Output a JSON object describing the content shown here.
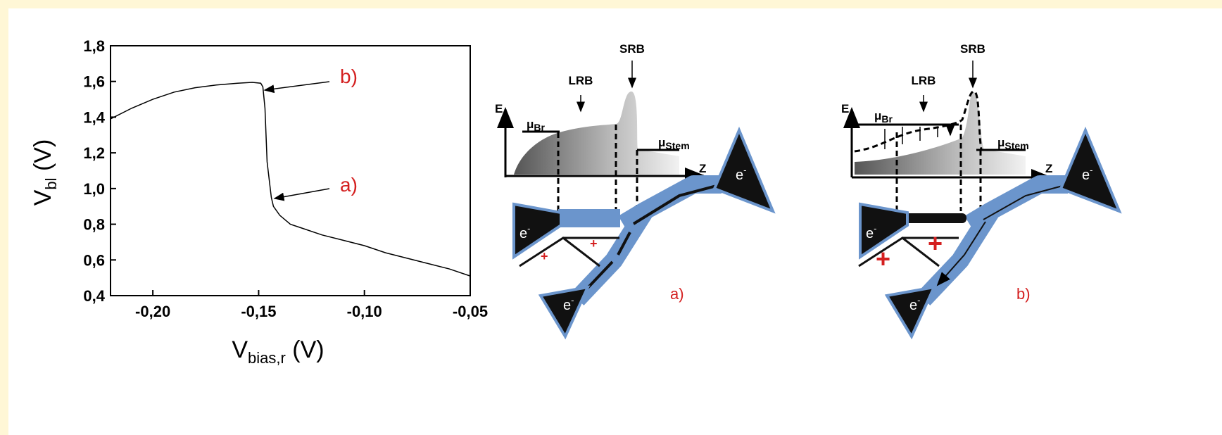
{
  "chart_data": {
    "type": "line",
    "ylabel": [
      "V",
      "bl",
      " (V)"
    ],
    "xlabel": [
      "V",
      "bias,r",
      " (V)"
    ],
    "x": [
      -0.22,
      -0.21,
      -0.2,
      -0.19,
      -0.18,
      -0.17,
      -0.16,
      -0.153,
      -0.149,
      -0.148,
      -0.147,
      -0.1465,
      -0.146,
      -0.145,
      -0.144,
      -0.143,
      -0.14,
      -0.135,
      -0.13,
      -0.12,
      -0.11,
      -0.1,
      -0.09,
      -0.08,
      -0.07,
      -0.06,
      -0.05
    ],
    "values": [
      1.39,
      1.45,
      1.5,
      1.54,
      1.565,
      1.58,
      1.59,
      1.595,
      1.59,
      1.57,
      1.45,
      1.3,
      1.15,
      1.05,
      0.95,
      0.9,
      0.85,
      0.8,
      0.78,
      0.74,
      0.71,
      0.68,
      0.64,
      0.61,
      0.58,
      0.55,
      0.51
    ],
    "color": "#000000",
    "xlim": [
      -0.22,
      -0.05
    ],
    "ylim": [
      0.4,
      1.8
    ],
    "xticks": [
      {
        "value": -0.2,
        "label": "-0,20"
      },
      {
        "value": -0.15,
        "label": "-0,15"
      },
      {
        "value": -0.1,
        "label": "-0,10"
      },
      {
        "value": -0.05,
        "label": "-0,05"
      }
    ],
    "yticks": [
      {
        "value": 0.4,
        "label": "0,4"
      },
      {
        "value": 0.6,
        "label": "0,6"
      },
      {
        "value": 0.8,
        "label": "0,8"
      },
      {
        "value": 1.0,
        "label": "1,0"
      },
      {
        "value": 1.2,
        "label": "1,2"
      },
      {
        "value": 1.4,
        "label": "1,4"
      },
      {
        "value": 1.6,
        "label": "1,6"
      },
      {
        "value": 1.8,
        "label": "1,8"
      }
    ],
    "annotations": [
      "b)",
      "a)"
    ]
  },
  "diagrams": [
    {
      "caption": "a)",
      "energy_axis": "E",
      "position_axis": "Z",
      "barriers": [
        "LRB",
        "SRB"
      ],
      "levels": [
        {
          "symbol": "μ",
          "sub": "Br"
        },
        {
          "symbol": "μ",
          "sub": "Stem"
        }
      ],
      "electrons": [
        {
          "symbol": "e",
          "sup": "-"
        },
        {
          "symbol": "e",
          "sup": "-"
        },
        {
          "symbol": "e",
          "sup": "-"
        }
      ],
      "charges": [
        "+",
        "+"
      ]
    },
    {
      "caption": "b)",
      "energy_axis": "E",
      "position_axis": "Z",
      "barriers": [
        "LRB",
        "SRB"
      ],
      "levels": [
        {
          "symbol": "μ",
          "sub": "Br"
        },
        {
          "symbol": "μ",
          "sub": "Stem"
        }
      ],
      "electrons": [
        {
          "symbol": "e",
          "sup": "-"
        },
        {
          "symbol": "e",
          "sup": "-"
        },
        {
          "symbol": "e",
          "sup": "-"
        }
      ],
      "charges": [
        "+",
        "+"
      ]
    }
  ]
}
